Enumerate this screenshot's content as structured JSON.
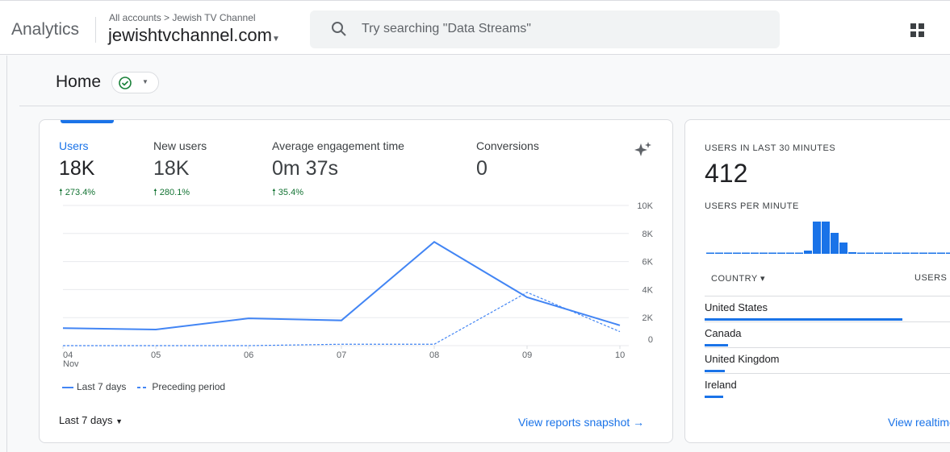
{
  "header": {
    "brand": "Analytics",
    "breadcrumb": "All accounts > Jewish TV Channel",
    "property": "jewishtvchannel.com",
    "search_placeholder": "Try searching \"Data Streams\""
  },
  "page": {
    "title": "Home"
  },
  "overview": {
    "metrics": [
      {
        "label": "Users",
        "value": "18K",
        "delta": "273.4%"
      },
      {
        "label": "New users",
        "value": "18K",
        "delta": "280.1%"
      },
      {
        "label": "Average engagement time",
        "value": "0m 37s",
        "delta": "35.4%"
      },
      {
        "label": "Conversions",
        "value": "0",
        "delta": ""
      }
    ],
    "legend": {
      "current": "Last 7 days",
      "previous": "Preceding period"
    },
    "date_range": "Last 7 days",
    "link": "View reports snapshot"
  },
  "chart_data": {
    "type": "line",
    "x": [
      "04",
      "05",
      "06",
      "07",
      "08",
      "09",
      "10"
    ],
    "x_sublabel": "Nov",
    "yticks": [
      "0",
      "2K",
      "4K",
      "6K",
      "8K",
      "10K"
    ],
    "ylim": [
      0,
      10000
    ],
    "series": [
      {
        "name": "Last 7 days",
        "values": [
          1250,
          1150,
          1950,
          1800,
          7400,
          3450,
          1450
        ],
        "style": "solid"
      },
      {
        "name": "Preceding period",
        "values": [
          0,
          0,
          0,
          100,
          100,
          3800,
          1000
        ],
        "style": "dashed"
      }
    ],
    "color": "#4285f4"
  },
  "realtime": {
    "title": "USERS IN LAST 30 MINUTES",
    "value": "412",
    "subtitle": "USERS PER MINUTE",
    "per_minute": [
      0,
      0,
      0,
      0,
      0,
      0,
      0,
      0,
      0,
      0,
      0,
      1,
      10,
      10,
      6.5,
      3.5,
      0.5,
      0,
      0,
      0,
      0,
      0,
      0,
      0,
      0,
      0,
      0,
      0,
      0,
      0
    ],
    "col_country": "COUNTRY",
    "col_users": "USERS",
    "countries": [
      {
        "name": "United States",
        "share": 0.75
      },
      {
        "name": "Canada",
        "share": 0.09
      },
      {
        "name": "United Kingdom",
        "share": 0.075
      },
      {
        "name": "Ireland",
        "share": 0.07
      }
    ],
    "link": "View realtime"
  }
}
